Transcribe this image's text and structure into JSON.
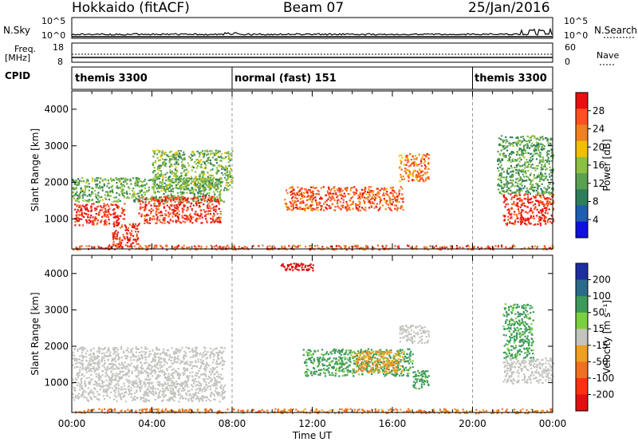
{
  "header": {
    "station": "Hokkaido (fitACF)",
    "beam": "Beam 07",
    "date": "25/Jan/2016"
  },
  "side_labels": {
    "noise_sky": "N.Sky",
    "noise_search": "N.Search",
    "freq_line1": "Freq.",
    "freq_line2": "[MHz]",
    "nave": "Nave",
    "cpid": "CPID"
  },
  "noise_axis": {
    "top": "10^5",
    "bottom": "10^0"
  },
  "freq_axis": {
    "top": "18",
    "bottom": "8"
  },
  "nave_axis": {
    "top": "60",
    "bottom": "0"
  },
  "cpid_segments": [
    {
      "label": "themis 3300",
      "start_hour": 0,
      "end_hour": 8
    },
    {
      "label": "normal (fast) 151",
      "start_hour": 8,
      "end_hour": 20
    },
    {
      "label": "themis 3300",
      "start_hour": 20,
      "end_hour": 24
    }
  ],
  "chart_data": [
    {
      "type": "heatmap",
      "panel": "power",
      "ylabel": "Slant Range [km]",
      "xlabel": "",
      "xlim": [
        0,
        24
      ],
      "ylim": [
        180,
        4500
      ],
      "yticks": [
        "1000",
        "2000",
        "3000",
        "4000"
      ],
      "colorbar": {
        "label": "Power [dB]",
        "ticks": [
          "4",
          "8",
          "12",
          "16",
          "20",
          "24",
          "28"
        ],
        "range": [
          0,
          32
        ],
        "colors": [
          "#1010e0",
          "#1e5eb0",
          "#2e7e5c",
          "#5aa050",
          "#8cc040",
          "#f0c000",
          "#f08020",
          "#ff5020",
          "#e81010"
        ]
      },
      "echo_regions": [
        {
          "x": [
            0.1,
            2.6
          ],
          "y": [
            850,
            1450
          ],
          "value": 29
        },
        {
          "x": [
            0.0,
            7.6
          ],
          "y": [
            1480,
            2150
          ],
          "value": 13
        },
        {
          "x": [
            2.0,
            3.3
          ],
          "y": [
            250,
            900
          ],
          "value": 29
        },
        {
          "x": [
            3.3,
            7.4
          ],
          "y": [
            900,
            1650
          ],
          "value": 28
        },
        {
          "x": [
            4.0,
            8.0
          ],
          "y": [
            1800,
            2900
          ],
          "value": 14
        },
        {
          "x": [
            10.6,
            16.5
          ],
          "y": [
            1250,
            1900
          ],
          "value": 26
        },
        {
          "x": [
            16.3,
            17.8
          ],
          "y": [
            2050,
            2800
          ],
          "value": 24
        },
        {
          "x": [
            21.5,
            24.0
          ],
          "y": [
            850,
            1700
          ],
          "value": 29
        },
        {
          "x": [
            21.2,
            24.0
          ],
          "y": [
            1700,
            3300
          ],
          "value": 12
        },
        {
          "x": [
            0.0,
            24.0
          ],
          "y": [
            180,
            300
          ],
          "value": 26
        }
      ]
    },
    {
      "type": "heatmap",
      "panel": "velocity",
      "ylabel": "Slant Range [km]",
      "xlabel": "Time UT",
      "xlim": [
        0,
        24
      ],
      "ylim": [
        180,
        4500
      ],
      "xticks": [
        "00:00",
        "04:00",
        "08:00",
        "12:00",
        "16:00",
        "20:00",
        "00:00"
      ],
      "yticks": [
        "1000",
        "2000",
        "3000",
        "4000"
      ],
      "colorbar": {
        "label": "Velocity [m s^-1]",
        "ticks": [
          "200",
          "100",
          "50",
          "15",
          "-15",
          "-50",
          "-100",
          "-200"
        ],
        "colors": [
          "#1c2ea0",
          "#2c6a8c",
          "#3c9a5a",
          "#7cd040",
          "#c4c4be",
          "#f0a020",
          "#f07020",
          "#ff3010",
          "#e01010"
        ]
      },
      "echo_regions": [
        {
          "x": [
            0.0,
            7.6
          ],
          "y": [
            500,
            2000
          ],
          "value": 0
        },
        {
          "x": [
            10.4,
            12.2
          ],
          "y": [
            4100,
            4300
          ],
          "value": -220
        },
        {
          "x": [
            11.5,
            17.0
          ],
          "y": [
            1200,
            1950
          ],
          "value": 60
        },
        {
          "x": [
            14.0,
            16.5
          ],
          "y": [
            1300,
            1900
          ],
          "value": -40
        },
        {
          "x": [
            17.0,
            17.8
          ],
          "y": [
            850,
            1350
          ],
          "value": 60
        },
        {
          "x": [
            16.3,
            17.8
          ],
          "y": [
            2100,
            2600
          ],
          "value": 0
        },
        {
          "x": [
            21.5,
            24.0
          ],
          "y": [
            1000,
            1700
          ],
          "value": 0
        },
        {
          "x": [
            21.5,
            23.0
          ],
          "y": [
            1700,
            3200
          ],
          "value": 60
        },
        {
          "x": [
            0.0,
            24.0
          ],
          "y": [
            180,
            300
          ],
          "value": -60
        }
      ]
    }
  ]
}
